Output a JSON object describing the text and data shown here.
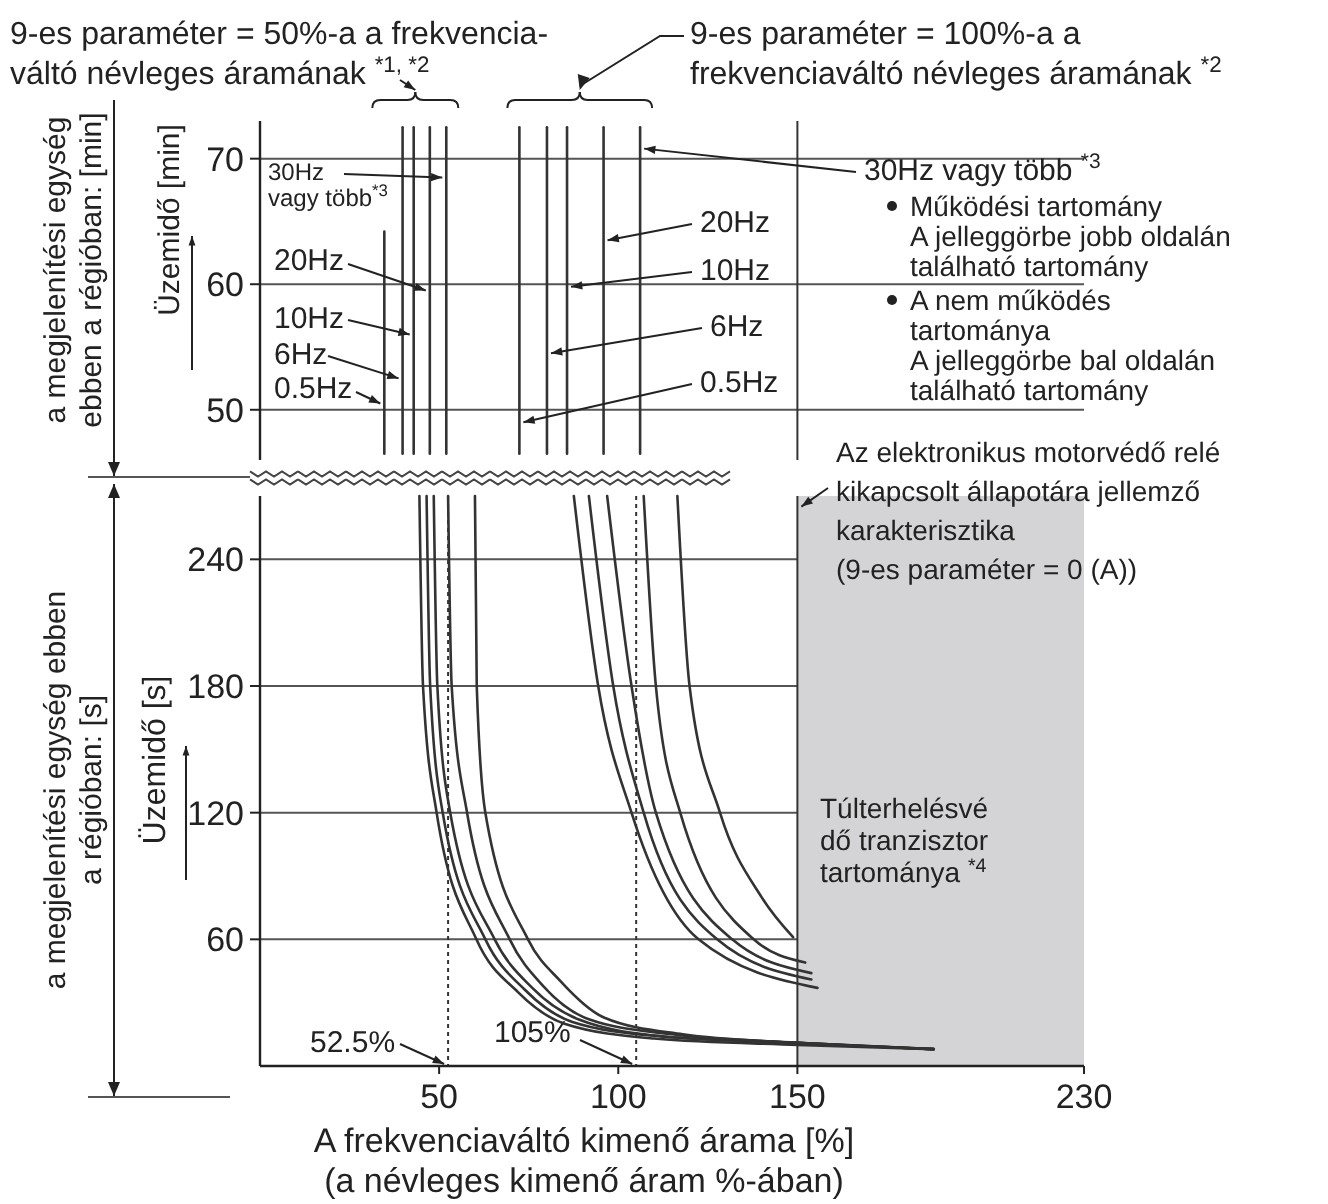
{
  "chart_data": [
    {
      "type": "line",
      "ylabel": "Üzemidő [min]",
      "xlim": [
        0,
        230
      ],
      "ylim": [
        46,
        73
      ],
      "yticks": [
        50,
        60,
        70
      ],
      "tick_labels": "y",
      "grid": "y",
      "marker": "none",
      "line_style": "solid",
      "series": [
        {
          "color": "#333333",
          "x": [
            34.7,
            34.7
          ],
          "values": [
            46.5,
            64.2
          ]
        },
        {
          "color": "#333333",
          "x": [
            39.8,
            39.8
          ],
          "values": [
            46.5,
            72.5
          ]
        },
        {
          "color": "#333333",
          "x": [
            42.9,
            42.9
          ],
          "values": [
            46.5,
            72.5
          ]
        },
        {
          "color": "#333333",
          "x": [
            47.4,
            47.4
          ],
          "values": [
            46.5,
            72.5
          ]
        },
        {
          "color": "#333333",
          "x": [
            52,
            52
          ],
          "values": [
            46.5,
            72.5
          ]
        },
        {
          "color": "#333333",
          "x": [
            72.4,
            72.4
          ],
          "values": [
            46.5,
            72.5
          ]
        },
        {
          "color": "#333333",
          "x": [
            80.1,
            80.1
          ],
          "values": [
            46.5,
            72.5
          ]
        },
        {
          "color": "#333333",
          "x": [
            85.7,
            85.7
          ],
          "values": [
            46.5,
            72.5
          ]
        },
        {
          "color": "#333333",
          "x": [
            95.9,
            95.9
          ],
          "values": [
            46.5,
            72.5
          ]
        },
        {
          "color": "#333333",
          "x": [
            106.1,
            106.1
          ],
          "values": [
            46.5,
            72.5
          ]
        }
      ],
      "ref_lines": [
        {
          "axis": "x",
          "value": 150,
          "color": "#333333"
        }
      ],
      "annotations": [
        "9-es paraméter = 50%-a a frekvencia-\nváltó névleges áramának $^{*1, *2}$",
        "9-es paraméter = 100%-a a\nfrekvenciaváltó névleges áramának $^{*2}$",
        {
          "text": "30Hz\nvagy több$^{*3}$",
          "x": 52,
          "y": 68.5
        },
        {
          "text": "20Hz",
          "x": 47.4,
          "y": 59.5
        },
        {
          "text": "10Hz",
          "x": 42.9,
          "y": 56
        },
        {
          "text": "6Hz",
          "x": 39.8,
          "y": 52.5
        },
        {
          "text": "0.5Hz",
          "x": 34.7,
          "y": 50.5
        },
        {
          "text": "30Hz vagy több $^{*3}$",
          "x": 106.1,
          "y": 70.8
        },
        {
          "text": "20Hz",
          "x": 95.9,
          "y": 63.5
        },
        {
          "text": "10Hz",
          "x": 85.7,
          "y": 59.8
        },
        {
          "text": "6Hz",
          "x": 80.1,
          "y": 54.5
        },
        {
          "text": "0.5Hz",
          "x": 72.4,
          "y": 49
        },
        "Működési tartomány\nA jelleggörbe jobb oldalán\ntalálható tartomány",
        "A nem működés\ntartománya\nA jelleggörbe bal oldalán\ntalálható tartomány",
        "a megjelenítési egység\nebben a régióban: [min]"
      ]
    },
    {
      "type": "line",
      "xlabel": "A frekvenciaváltó kimenő árama [%]\n(a névleges kimenő áram %-ában)",
      "ylabel": "Üzemidő [s]",
      "xlim": [
        0,
        230
      ],
      "xticks": [
        50,
        100,
        150,
        230
      ],
      "ylim": [
        0,
        270
      ],
      "yticks": [
        60,
        120,
        180,
        240
      ],
      "grid": "y",
      "marker": "none",
      "line_style": "solid",
      "series": [
        {
          "color": "#333333",
          "x": [
            44.5,
            45.5,
            49.3,
            60.4,
            72,
            85,
            110,
            150,
            188
          ],
          "values": [
            270,
            180,
            120,
            60,
            35,
            20,
            13,
            10,
            8
          ]
        },
        {
          "color": "#333333",
          "x": [
            46.5,
            47.5,
            51,
            62.9,
            74,
            87,
            112,
            150,
            188
          ],
          "values": [
            270,
            180,
            120,
            60,
            36,
            21,
            14,
            11,
            8
          ]
        },
        {
          "color": "#333333",
          "x": [
            48.5,
            49.5,
            53.1,
            65.5,
            76,
            89,
            113,
            150,
            188
          ],
          "values": [
            270,
            180,
            120,
            60,
            37,
            22,
            14,
            11,
            8
          ]
        },
        {
          "color": "#333333",
          "x": [
            52.5,
            53.5,
            57.8,
            69.7,
            79,
            92,
            115,
            150,
            188
          ],
          "values": [
            270,
            180,
            120,
            60,
            38,
            22,
            15,
            11,
            8
          ]
        },
        {
          "color": "#333333",
          "x": [
            60,
            60.5,
            62.9,
            74.8,
            84,
            96,
            118,
            150,
            188
          ],
          "values": [
            270,
            180,
            120,
            60,
            40,
            23,
            15,
            11,
            8
          ]
        },
        {
          "color": "#333333",
          "x": [
            87.6,
            94.4,
            103.7,
            122.4,
            155.6
          ],
          "values": [
            270,
            180,
            120,
            60,
            37
          ]
        },
        {
          "color": "#333333",
          "x": [
            91.8,
            98.6,
            107.1,
            127.6,
            153.9
          ],
          "values": [
            270,
            180,
            120,
            60,
            41
          ]
        },
        {
          "color": "#333333",
          "x": [
            96.9,
            103.7,
            110.5,
            131.8,
            153.9
          ],
          "values": [
            270,
            180,
            120,
            60,
            44
          ]
        },
        {
          "color": "#333333",
          "x": [
            107.1,
            110.5,
            117.3,
            137.8,
            152.2
          ],
          "values": [
            270,
            180,
            120,
            60,
            49
          ]
        },
        {
          "color": "#333333",
          "x": [
            116.5,
            119.9,
            128.4,
            140,
            148.8
          ],
          "values": [
            270,
            180,
            120,
            80,
            61
          ]
        }
      ],
      "ref_lines": [
        {
          "axis": "x",
          "value": 52.5,
          "label": "52.5%",
          "line_style": "dotted",
          "color": "#333333"
        },
        {
          "axis": "x",
          "value": 105,
          "label": "105%",
          "line_style": "dotted",
          "color": "#333333"
        },
        {
          "axis": "x",
          "value": 150,
          "color": "#333333"
        }
      ],
      "bands": [
        {
          "axis": "x",
          "from": 150,
          "to": 230,
          "label": "Túlterhelésvé\ndő tranzisztor\ntartománya $^{*4}$",
          "color": "#d4d4d6"
        }
      ],
      "annotations": [
        "a megjelenítési egység ebben\na régióban: [s]",
        {
          "text": "Az elektronikus motorvédő relé\nkikapcsolt állapotára jellemző\nkarakterisztika\n(9-es paraméter = 0 (A))",
          "x": 150,
          "y": 265
        }
      ]
    }
  ]
}
